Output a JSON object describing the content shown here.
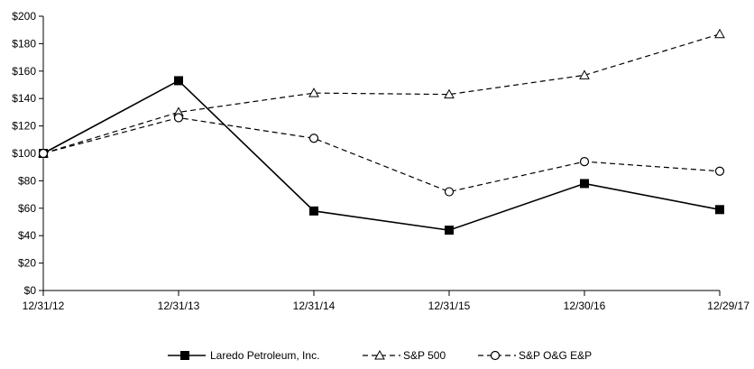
{
  "chart_data": {
    "type": "line",
    "title": "",
    "xlabel": "",
    "ylabel": "",
    "categories": [
      "12/31/12",
      "12/31/13",
      "12/31/14",
      "12/31/15",
      "12/30/16",
      "12/29/17"
    ],
    "y_ticks": [
      "$0",
      "$20",
      "$40",
      "$60",
      "$80",
      "$100",
      "$120",
      "$140",
      "$160",
      "$180",
      "$200"
    ],
    "ylim": [
      0,
      200
    ],
    "grid": false,
    "legend_position": "bottom",
    "series": [
      {
        "name": "Laredo Petroleum, Inc.",
        "values": [
          100,
          153,
          58,
          44,
          78,
          59
        ],
        "line_style": "solid",
        "marker": "filled-square",
        "color": "#000000"
      },
      {
        "name": "S&P 500",
        "values": [
          100,
          130,
          144,
          143,
          157,
          187
        ],
        "line_style": "dashed",
        "marker": "open-triangle",
        "color": "#000000"
      },
      {
        "name": "S&P O&G E&P",
        "values": [
          100,
          126,
          111,
          72,
          94,
          87
        ],
        "line_style": "dashed",
        "marker": "open-circle",
        "color": "#000000"
      }
    ]
  }
}
